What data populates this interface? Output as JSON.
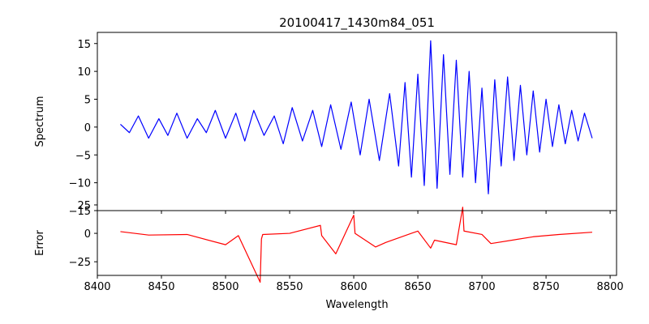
{
  "chart_data": [
    {
      "type": "line",
      "title": "20100417_1430m84_051",
      "xlabel": "",
      "ylabel": "Spectrum",
      "xlim": [
        8400,
        8805
      ],
      "ylim": [
        -15,
        17
      ],
      "xticks": [
        8400,
        8450,
        8500,
        8550,
        8600,
        8650,
        8700,
        8750,
        8800
      ],
      "yticks": [
        15,
        10,
        5,
        0,
        -5,
        -10,
        -15
      ],
      "ytick_labels": [
        "15",
        "10",
        "5",
        "0",
        "−5",
        "−10",
        "−15"
      ],
      "grid": false,
      "legend": "none",
      "series": [
        {
          "color": "#0000ff",
          "x": [
            8418,
            8425,
            8432,
            8440,
            8448,
            8455,
            8462,
            8470,
            8478,
            8485,
            8492,
            8500,
            8508,
            8515,
            8522,
            8530,
            8538,
            8545,
            8552,
            8560,
            8568,
            8575,
            8582,
            8590,
            8598,
            8605,
            8612,
            8620,
            8628,
            8635,
            8640,
            8645,
            8650,
            8655,
            8660,
            8665,
            8670,
            8675,
            8680,
            8685,
            8690,
            8695,
            8700,
            8705,
            8710,
            8715,
            8720,
            8725,
            8730,
            8735,
            8740,
            8745,
            8750,
            8755,
            8760,
            8765,
            8770,
            8775,
            8780,
            8786
          ],
          "values": [
            0.5,
            -1.0,
            2.0,
            -2.0,
            1.5,
            -1.5,
            2.5,
            -2.0,
            1.5,
            -1.0,
            3.0,
            -2.0,
            2.5,
            -2.5,
            3.0,
            -1.5,
            2.0,
            -3.0,
            3.5,
            -2.5,
            3.0,
            -3.5,
            4.0,
            -4.0,
            4.5,
            -5.0,
            5.0,
            -6.0,
            6.0,
            -7.0,
            8.0,
            -9.0,
            9.5,
            -10.5,
            15.5,
            -11.0,
            13.0,
            -8.5,
            12.0,
            -9.0,
            10.0,
            -10.0,
            7.0,
            -12.0,
            8.5,
            -7.0,
            9.0,
            -6.0,
            7.5,
            -5.0,
            6.5,
            -4.5,
            5.0,
            -3.5,
            4.0,
            -3.0,
            3.0,
            -2.5,
            2.5,
            -2.0
          ]
        }
      ]
    },
    {
      "type": "line",
      "title": "",
      "xlabel": "Wavelength",
      "ylabel": "Error",
      "xlim": [
        8400,
        8805
      ],
      "ylim": [
        -37,
        20
      ],
      "xticks": [
        8400,
        8450,
        8500,
        8550,
        8600,
        8650,
        8700,
        8750,
        8800
      ],
      "xtick_labels": [
        "8400",
        "8450",
        "8500",
        "8550",
        "8600",
        "8650",
        "8700",
        "8750",
        "8800"
      ],
      "yticks": [
        25,
        0,
        -25
      ],
      "ytick_labels": [
        "25",
        "0",
        "−25"
      ],
      "grid": false,
      "legend": "none",
      "series": [
        {
          "color": "#ff0000",
          "x": [
            8418,
            8440,
            8470,
            8500,
            8510,
            8527,
            8528,
            8529,
            8550,
            8574,
            8575,
            8586,
            8600,
            8601,
            8617,
            8625,
            8650,
            8660,
            8663,
            8680,
            8685,
            8686,
            8700,
            8707,
            8740,
            8760,
            8786
          ],
          "values": [
            1.5,
            -1.5,
            -1.0,
            -10.0,
            -2.0,
            -43.0,
            -5.0,
            -1.0,
            0.0,
            7.0,
            -2.0,
            -18.0,
            16.0,
            0.0,
            -12.0,
            -8.0,
            2.0,
            -13.0,
            -6.0,
            -10.0,
            23.0,
            2.0,
            -1.0,
            -9.0,
            -3.0,
            -1.0,
            1.0
          ]
        }
      ]
    }
  ]
}
